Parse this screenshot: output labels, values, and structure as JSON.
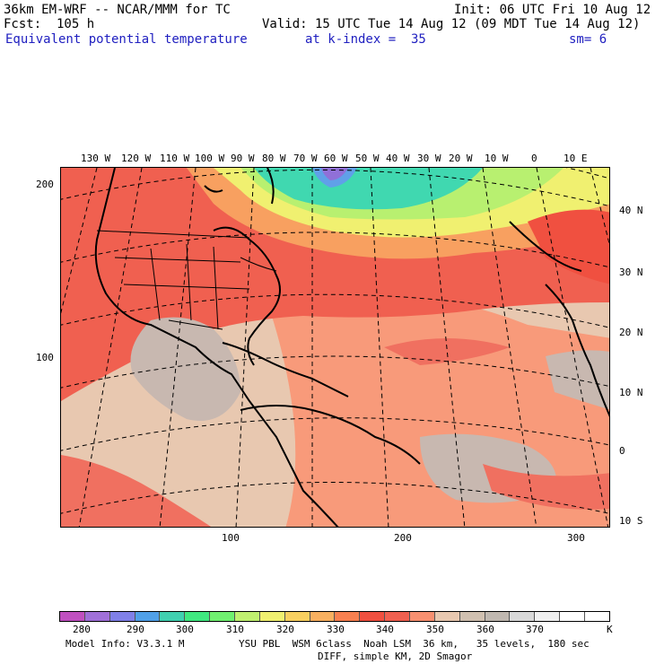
{
  "header": {
    "model": "36km EM-WRF -- NCAR/MMM for TC",
    "init": "Init: 06 UTC Fri 10 Aug 12",
    "forecast": "Fcst:  105 h",
    "valid": "Valid: 15 UTC Tue 14 Aug 12 (09 MDT Tue 14 Aug 12)",
    "field": "Equivalent potential temperature",
    "level": "at k-index =  35",
    "smoothing": "sm= 6"
  },
  "map": {
    "longitude_labels": [
      "130 W",
      "120 W",
      "110 W",
      "100 W",
      "90 W",
      "80 W",
      "70 W",
      "60 W",
      "50 W",
      "40 W",
      "30 W",
      "20 W",
      "10 W",
      "0",
      "10 E"
    ],
    "latitude_labels": [
      "40 N",
      "30 N",
      "20 N",
      "10 N",
      "0",
      "10 S"
    ],
    "grid_y_labels": [
      "200",
      "100"
    ],
    "grid_x_labels": [
      "100",
      "200",
      "300"
    ]
  },
  "legend": {
    "values": [
      "280",
      "290",
      "300",
      "310",
      "320",
      "330",
      "340",
      "350",
      "360",
      "370"
    ],
    "unit": "K",
    "colors": [
      "#c050c0",
      "#a070d8",
      "#8080e8",
      "#50a0e8",
      "#40d0b0",
      "#40e880",
      "#70f070",
      "#c0f070",
      "#f0f070",
      "#f8d060",
      "#f8b060",
      "#f88050",
      "#f05040",
      "#f06050",
      "#f89070",
      "#e8c8b0",
      "#d0c0b0",
      "#c0b8b0",
      "#d8d8d8",
      "#f0f0f0",
      "#ffffff",
      "#ffffff"
    ]
  },
  "footer": {
    "line1_left": "Model Info: V3.3.1 M",
    "line1_right": "YSU PBL  WSM 6class  Noah LSM  36 km,   35 levels,  180 sec",
    "line2": "DIFF, simple KM, 2D Smagor"
  }
}
